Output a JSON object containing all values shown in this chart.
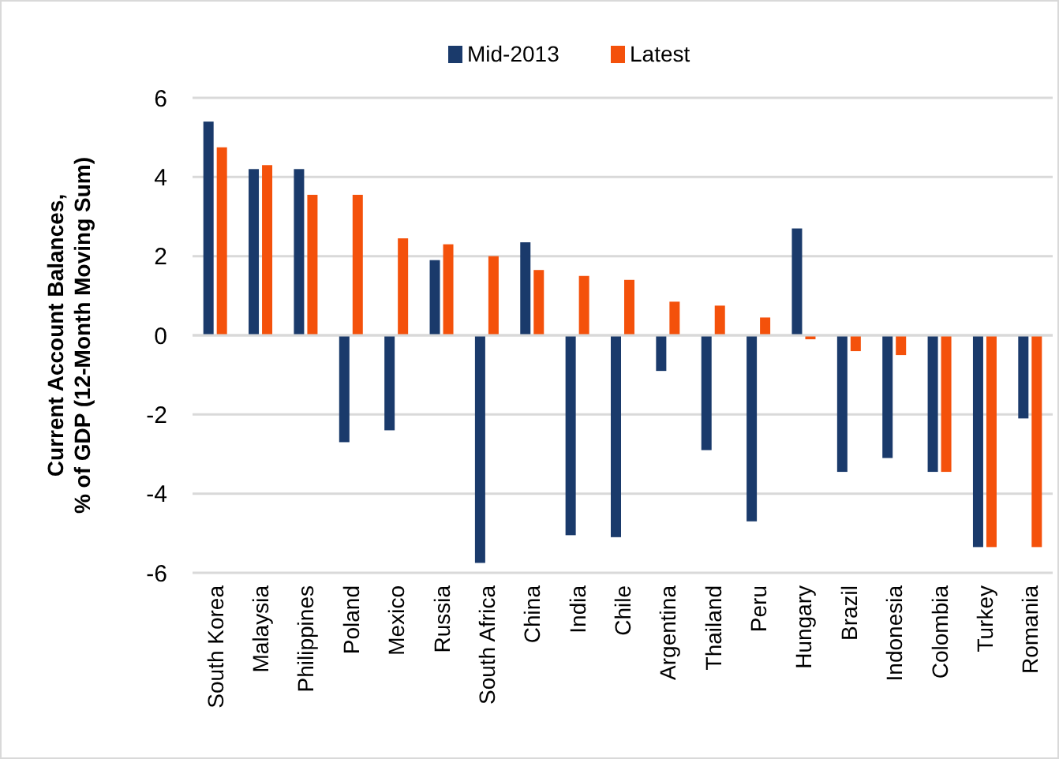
{
  "chart_data": {
    "type": "bar",
    "ylabel": "Current Account Balances,\n% of GDP (12-Month Moving Sum)",
    "categories": [
      "South Korea",
      "Malaysia",
      "Philippines",
      "Poland",
      "Mexico",
      "Russia",
      "South Africa",
      "China",
      "India",
      "Chile",
      "Argentina",
      "Thailand",
      "Peru",
      "Hungary",
      "Brazil",
      "Indonesia",
      "Colombia",
      "Turkey",
      "Romania"
    ],
    "series": [
      {
        "name": "Mid-2013",
        "color": "#1a3a6b",
        "values": [
          5.4,
          4.2,
          4.2,
          -2.7,
          -2.4,
          1.9,
          -5.75,
          2.35,
          -5.05,
          -5.1,
          -0.9,
          -2.9,
          -4.7,
          2.7,
          -3.45,
          -3.1,
          -3.45,
          -5.35,
          -2.1
        ]
      },
      {
        "name": "Latest",
        "color": "#f4510b",
        "values": [
          4.75,
          4.3,
          3.55,
          3.55,
          2.45,
          2.3,
          2.0,
          1.65,
          1.5,
          1.4,
          0.85,
          0.75,
          0.45,
          -0.1,
          -0.4,
          -0.5,
          -3.45,
          -5.35,
          -5.35
        ]
      }
    ],
    "ylim": [
      -6,
      6
    ],
    "yticks": [
      -6,
      -4,
      -2,
      0,
      2,
      4,
      6
    ],
    "grid": "y",
    "legend": "top"
  }
}
